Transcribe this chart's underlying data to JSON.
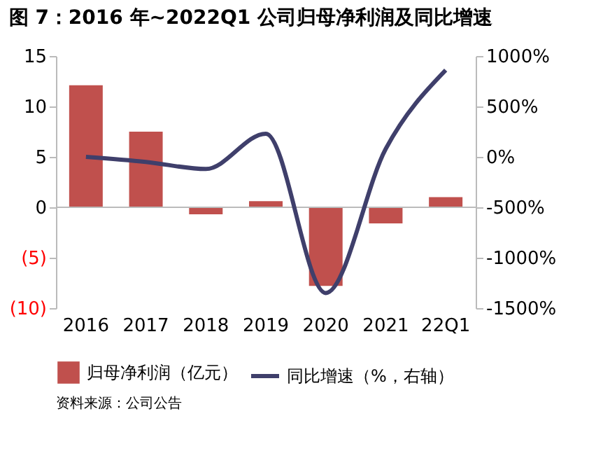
{
  "chart_data": {
    "type": "bar",
    "title": "图 7：2016 年~2022Q1 公司归母净利润及同比增速",
    "categories": [
      "2016",
      "2017",
      "2018",
      "2019",
      "2020",
      "2021",
      "22Q1"
    ],
    "series": [
      {
        "name": "归母净利润（亿元）",
        "color": "#c0504d",
        "values": [
          12.1,
          7.5,
          -0.7,
          0.6,
          -7.8,
          -1.6,
          1.0
        ]
      },
      {
        "name": "同比增速（%，右轴）",
        "type": "line",
        "axis": "y2",
        "color": "#3f3f6b",
        "values": [
          0,
          -50,
          -120,
          230,
          -1350,
          80,
          860
        ]
      }
    ],
    "ylim": [
      -10,
      15
    ],
    "yticks": [
      {
        "value": -10,
        "label": "(10)"
      },
      {
        "value": -5,
        "label": "(5)"
      },
      0,
      5,
      10,
      15
    ],
    "y2lim": [
      -1500,
      1000
    ],
    "y2ticks": [
      {
        "value": -1500,
        "label": "-1500%"
      },
      {
        "value": -1000,
        "label": "-1000%"
      },
      {
        "value": -500,
        "label": "-500%"
      },
      {
        "value": 0,
        "label": "0%"
      },
      {
        "value": 500,
        "label": "500%"
      },
      {
        "value": 1000,
        "label": "1000%"
      }
    ],
    "ref_lines": [
      {
        "axis": "y",
        "value": 0,
        "color": "#bbbbbb"
      }
    ],
    "legend": "bottom",
    "grid": false,
    "marker": "none",
    "line_style": "solid",
    "annotations": [
      "资料来源：公司公告"
    ]
  }
}
